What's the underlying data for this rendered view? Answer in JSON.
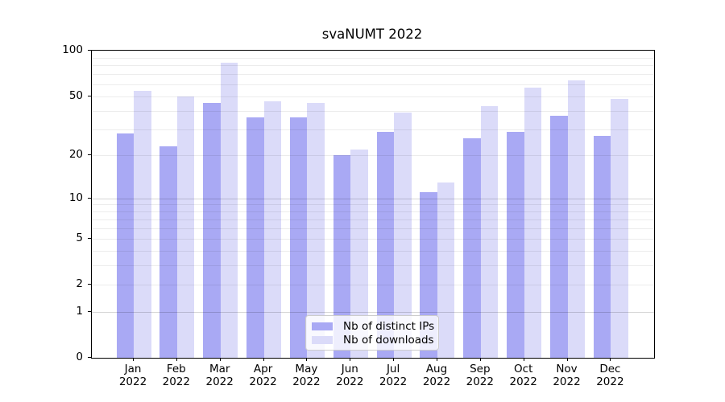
{
  "title": "svaNUMT 2022",
  "chart_data": {
    "type": "bar",
    "title": "svaNUMT 2022",
    "categories": [
      "Jan 2022",
      "Feb 2022",
      "Mar 2022",
      "Apr 2022",
      "May 2022",
      "Jun 2022",
      "Jul 2022",
      "Aug 2022",
      "Sep 2022",
      "Oct 2022",
      "Nov 2022",
      "Dec 2022"
    ],
    "series": [
      {
        "name": "Nb of distinct IPs",
        "color": "#a9a9f4",
        "values": [
          28,
          23,
          45,
          36,
          36,
          20,
          29,
          11,
          26,
          29,
          37,
          27
        ]
      },
      {
        "name": "Nb of downloads",
        "color": "#dbdbf9",
        "values": [
          54,
          50,
          83,
          46,
          45,
          22,
          39,
          13,
          43,
          57,
          64,
          48
        ]
      }
    ],
    "yscale": "log1p",
    "ylim": [
      0,
      100
    ],
    "y_tick_labels": [
      100,
      50,
      20,
      10,
      5,
      2,
      1,
      0
    ],
    "y_major_gridlines": [
      1,
      10,
      100
    ],
    "y_minor_gridlines": [
      2,
      3,
      4,
      5,
      6,
      7,
      8,
      9,
      20,
      30,
      40,
      50,
      60,
      70,
      80,
      90
    ],
    "grid": true,
    "legend_position": "lower center"
  }
}
